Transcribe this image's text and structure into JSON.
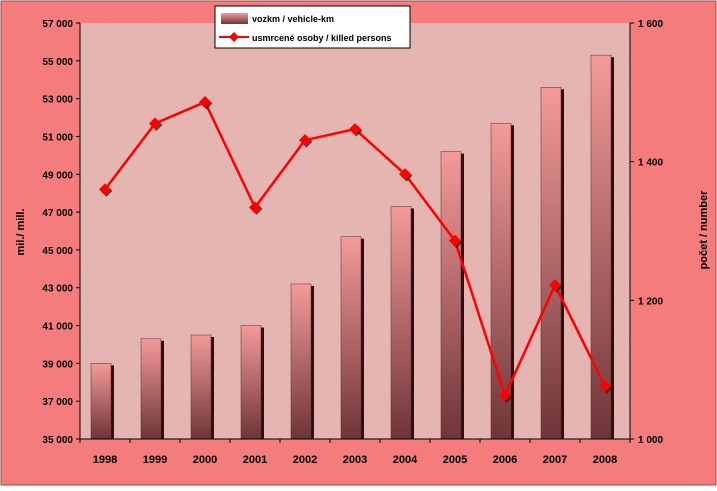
{
  "chart_data": {
    "type": "bar",
    "title": "",
    "categories": [
      "1998",
      "1999",
      "2000",
      "2001",
      "2002",
      "2003",
      "2004",
      "2005",
      "2006",
      "2007",
      "2008"
    ],
    "series": [
      {
        "name": "vozkm / vehicle-km",
        "type": "bar",
        "axis": "left",
        "values": [
          39000,
          40300,
          40500,
          41000,
          43200,
          45700,
          47300,
          50200,
          51700,
          53600,
          55300
        ]
      },
      {
        "name": "usmrcené osoby / killed persons",
        "type": "line",
        "axis": "right",
        "values": [
          1360,
          1455,
          1486,
          1334,
          1431,
          1447,
          1382,
          1286,
          1063,
          1222,
          1076
        ]
      }
    ],
    "ylabel": "mil./ mill.",
    "ylabel_right": "počet / number",
    "ylim": [
      35000,
      57000
    ],
    "ylim_right": [
      1000,
      1600
    ],
    "yticks_left": [
      35000,
      37000,
      39000,
      41000,
      43000,
      45000,
      47000,
      49000,
      51000,
      53000,
      55000,
      57000
    ],
    "yticks_left_labels": [
      "35 000",
      "37 000",
      "39 000",
      "41 000",
      "43 000",
      "45 000",
      "47 000",
      "49 000",
      "51 000",
      "53 000",
      "55 000",
      "57 000"
    ],
    "yticks_right": [
      1000,
      1200,
      1400,
      1600
    ],
    "yticks_right_labels": [
      "1 000",
      "1 200",
      "1 400",
      "1 600"
    ],
    "legend_position": "top-center",
    "grid": false,
    "colors": {
      "outer_background": "#f47c7c",
      "plot_background": "#e8b7b3",
      "bar_top": "#f49a9a",
      "bar_bottom": "#6e3538",
      "line": "#ff0000",
      "marker": "#ff0000"
    }
  }
}
